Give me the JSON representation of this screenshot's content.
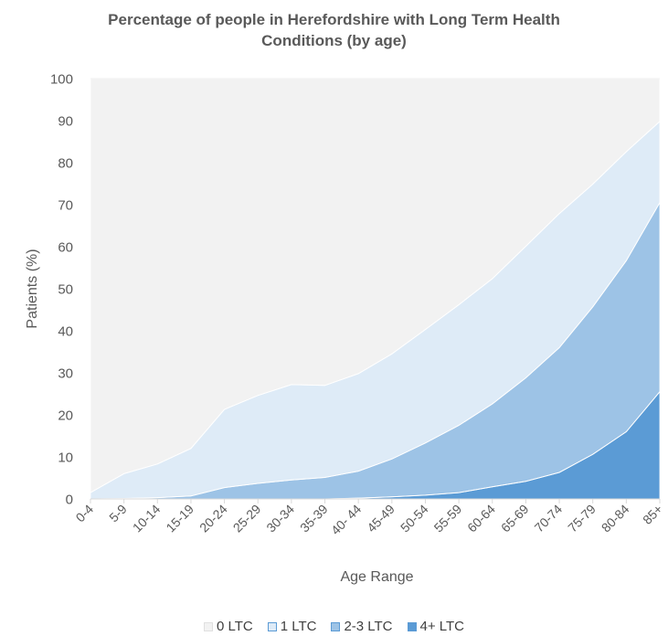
{
  "chart_data": {
    "type": "area",
    "stacked": true,
    "title_lines": [
      "Percentage of people in Herefordshire with Long Term Health",
      "Conditions (by age)"
    ],
    "xlabel": "Age Range",
    "ylabel": "Patients (%)",
    "ylim": [
      0,
      100
    ],
    "yticks": [
      0,
      10,
      20,
      30,
      40,
      50,
      60,
      70,
      80,
      90,
      100
    ],
    "grid": false,
    "legend_position": "bottom",
    "categories": [
      "0-4",
      "5-9",
      "10-14",
      "15-19",
      "20-24",
      "25-29",
      "30-34",
      "35-39",
      "40- 44",
      "45-49",
      "50-54",
      "55-59",
      "60-64",
      "65-69",
      "70-74",
      "75-79",
      "80-84",
      "85+"
    ],
    "series": [
      {
        "name": "4+ LTC",
        "color": "#5b9bd5",
        "values": [
          0,
          0,
          0,
          0,
          0,
          0,
          0,
          0,
          0.2,
          0.5,
          0.9,
          1.5,
          2.9,
          4.2,
          6.3,
          10.6,
          16,
          25.5
        ]
      },
      {
        "name": "2-3 LTC",
        "color": "#9dc3e6",
        "values": [
          0,
          0.1,
          0.3,
          0.7,
          2.7,
          3.7,
          4.5,
          5.1,
          6.6,
          9.5,
          13.3,
          17.5,
          22.6,
          28.8,
          36,
          45.7,
          56.7,
          70.5
        ]
      },
      {
        "name": "1 LTC",
        "color": "#deebf7",
        "values": [
          1.5,
          6,
          8.3,
          12,
          21.3,
          24.6,
          27.2,
          27,
          29.8,
          34.5,
          40.3,
          46.2,
          52.4,
          60.1,
          67.9,
          74.9,
          82.6,
          89.8
        ]
      },
      {
        "name": "0 LTC",
        "color": "#f2f2f2",
        "values": [
          100,
          100,
          100,
          100,
          100,
          100,
          100,
          100,
          100,
          100,
          100,
          100,
          100,
          100,
          100,
          100,
          100,
          100
        ]
      }
    ],
    "series_note": "values are cumulative (stacked) percentages read at the top edge of each band"
  },
  "legend": {
    "items": [
      {
        "label": "0 LTC",
        "color": "#f2f2f2",
        "border": "#e0e0e0"
      },
      {
        "label": "1 LTC",
        "color": "#deebf7",
        "border": "#5b9bd5"
      },
      {
        "label": "2-3 LTC",
        "color": "#9dc3e6",
        "border": "#5b9bd5"
      },
      {
        "label": "4+ LTC",
        "color": "#5b9bd5",
        "border": "#5b9bd5"
      }
    ]
  }
}
